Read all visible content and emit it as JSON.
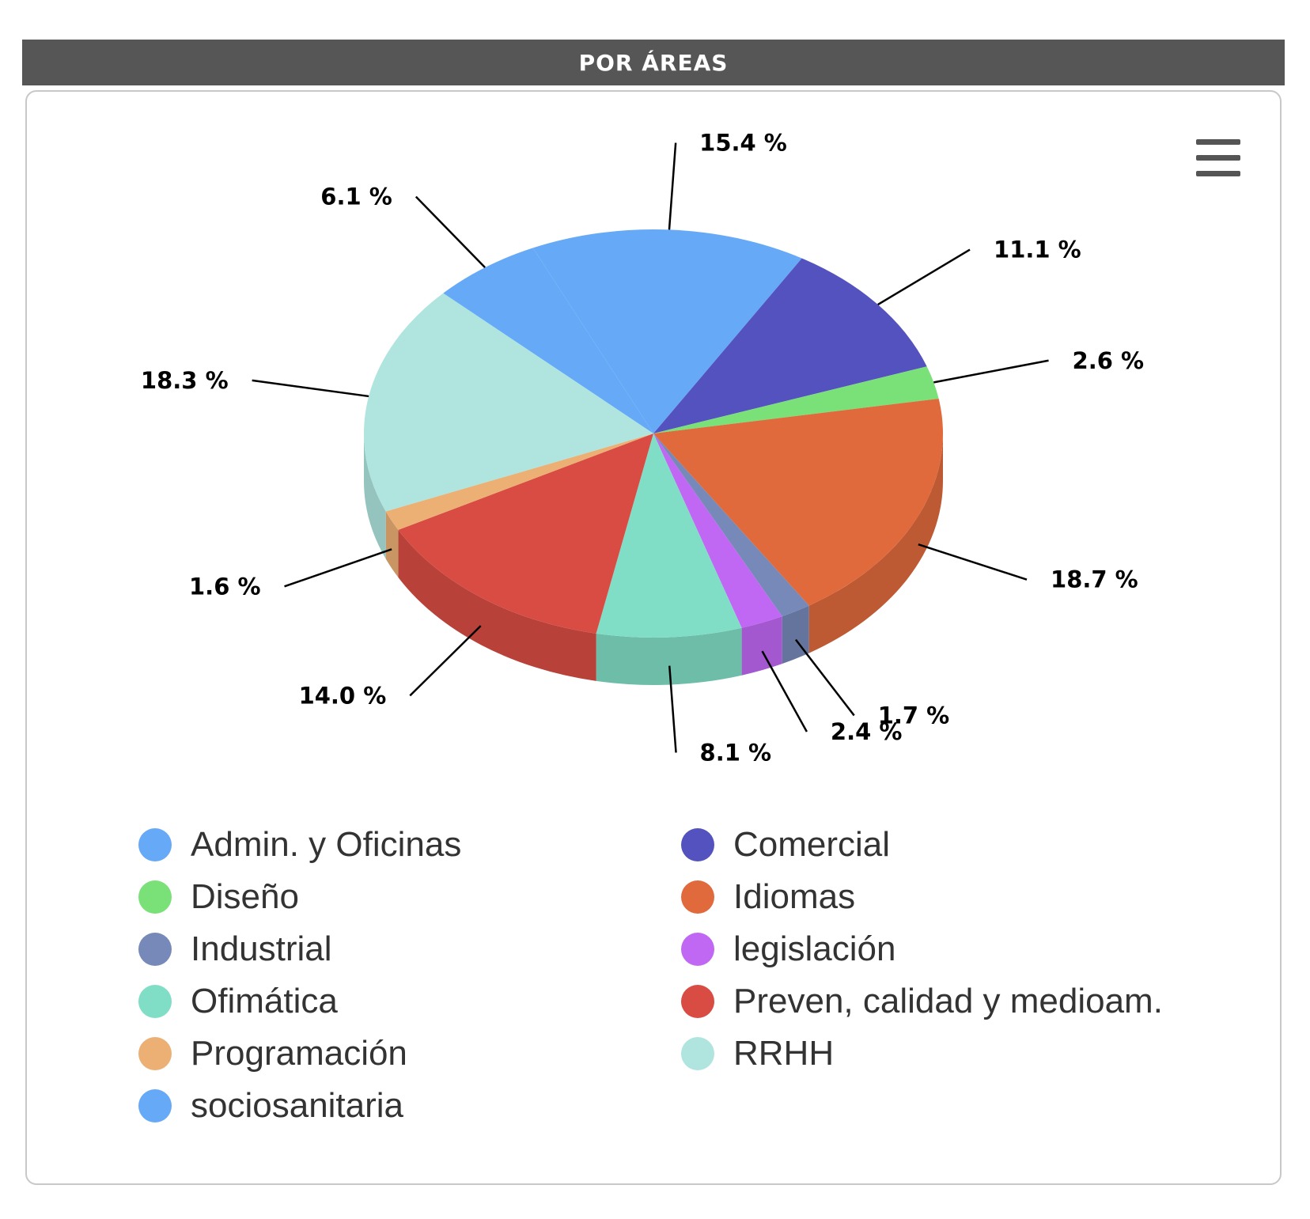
{
  "header": {
    "title": "POR ÁREAS"
  },
  "menu": {
    "icon": "hamburger-menu-icon"
  },
  "chart_data": {
    "type": "pie",
    "title": "POR ÁREAS",
    "style": "3d",
    "legend_position": "bottom",
    "slices": [
      {
        "name": "Admin. y Oficinas",
        "value": 15.4,
        "label": "15.4 %",
        "color": "#66aaf7"
      },
      {
        "name": "Comercial",
        "value": 11.1,
        "label": "11.1 %",
        "color": "#5352bf"
      },
      {
        "name": "Diseño",
        "value": 2.6,
        "label": "2.6 %",
        "color": "#7ae078"
      },
      {
        "name": "Idiomas",
        "value": 18.7,
        "label": "18.7 %",
        "color": "#e06a3c"
      },
      {
        "name": "Industrial",
        "value": 1.7,
        "label": "1.7 %",
        "color": "#7689b8"
      },
      {
        "name": "legislación",
        "value": 2.4,
        "label": "2.4 %",
        "color": "#c067f3"
      },
      {
        "name": "Ofimática",
        "value": 8.1,
        "label": "8.1 %",
        "color": "#80dec7"
      },
      {
        "name": "Preven, calidad y medioam.",
        "value": 14.0,
        "label": "14.0 %",
        "color": "#d94c43"
      },
      {
        "name": "Programación",
        "value": 1.6,
        "label": "1.6 %",
        "color": "#ecb075"
      },
      {
        "name": "RRHH",
        "value": 18.3,
        "label": "18.3 %",
        "color": "#afe5de"
      },
      {
        "name": "sociosanitaria",
        "value": 6.1,
        "label": "6.1 %",
        "color": "#66aaf7"
      }
    ]
  }
}
